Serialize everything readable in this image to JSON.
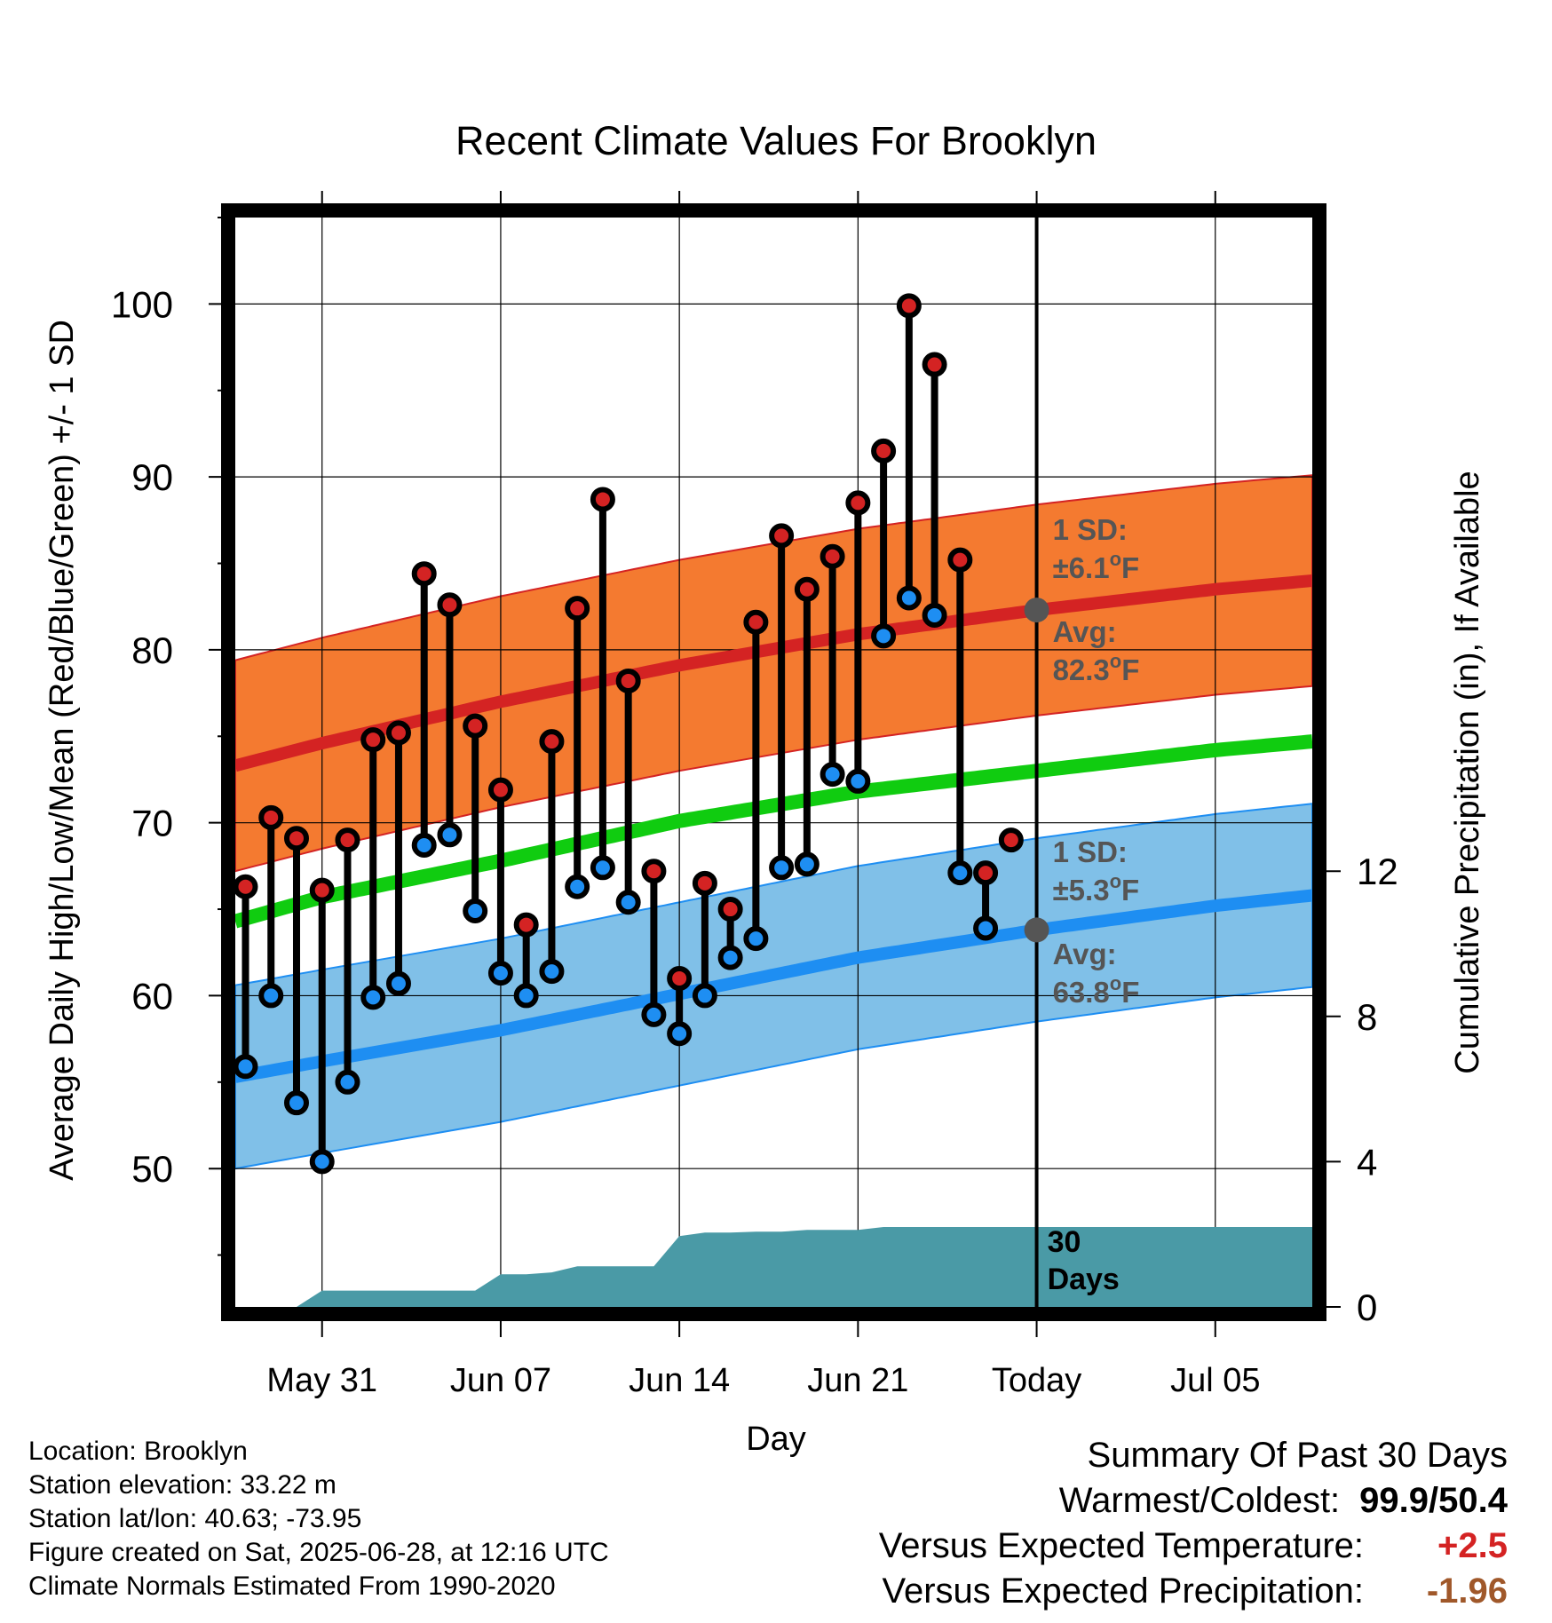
{
  "chart_data": {
    "type": "line",
    "title": "Recent Climate Values For Brooklyn",
    "xlabel": "Day",
    "ylabel": "Average Daily High/Low/Mean (Red/Blue/Green) +/- 1 SD",
    "y2label": "Cumulative Precipitation (in), If Available",
    "ylim": [
      42,
      105
    ],
    "y2lim": [
      0,
      30
    ],
    "xlim_day_of_year": [
      147.6,
      189.8
    ],
    "x_ticks": [
      {
        "doy": 151,
        "label": "May 31"
      },
      {
        "doy": 158,
        "label": "Jun 07"
      },
      {
        "doy": 165,
        "label": "Jun 14"
      },
      {
        "doy": 172,
        "label": "Jun 21"
      },
      {
        "doy": 179,
        "label": "Today"
      },
      {
        "doy": 186,
        "label": "Jul 05"
      }
    ],
    "y_ticks": [
      50,
      60,
      70,
      80,
      90,
      100
    ],
    "y2_ticks": [
      0,
      4,
      8,
      12
    ],
    "grid": true,
    "colors": {
      "high": "#d42323",
      "high_band": "#f47a30",
      "low": "#1e8ef2",
      "low_band": "#80c0e8",
      "mean": "#10cc10",
      "precip": "#4a9aa6",
      "annotation": "#555555",
      "avg_marker": "#555555",
      "frame": "#000000"
    },
    "high_normal": {
      "x": [
        147.6,
        151,
        158,
        165,
        172,
        179,
        186,
        189.8
      ],
      "values": [
        73.3,
        74.6,
        77.0,
        79.1,
        80.9,
        82.3,
        83.5,
        84.0
      ]
    },
    "high_sd": 6.1,
    "mean_normal": {
      "x": [
        147.6,
        151,
        158,
        165,
        172,
        179,
        186,
        189.8
      ],
      "values": [
        64.3,
        65.7,
        67.8,
        70.1,
        71.8,
        73.0,
        74.2,
        74.7
      ]
    },
    "low_normal": {
      "x": [
        147.6,
        151,
        158,
        165,
        172,
        179,
        186,
        189.8
      ],
      "values": [
        55.3,
        56.2,
        58.0,
        60.1,
        62.2,
        63.8,
        65.2,
        65.8
      ]
    },
    "low_sd": 5.3,
    "days": [
      148,
      149,
      150,
      151,
      152,
      153,
      154,
      155,
      156,
      157,
      158,
      159,
      160,
      161,
      162,
      163,
      164,
      165,
      166,
      167,
      168,
      169,
      170,
      171,
      172,
      173,
      174,
      175,
      176,
      177,
      178
    ],
    "highs": [
      66.3,
      70.3,
      69.1,
      66.1,
      69.0,
      74.8,
      75.2,
      84.4,
      82.6,
      75.6,
      71.9,
      64.1,
      74.7,
      82.4,
      88.7,
      78.2,
      67.2,
      61.0,
      66.5,
      65.0,
      81.6,
      86.6,
      83.5,
      85.4,
      88.5,
      91.5,
      99.9,
      96.5,
      85.2,
      67.1,
      69.0
    ],
    "lows": [
      55.9,
      60.0,
      53.8,
      50.4,
      55.0,
      59.9,
      60.7,
      68.7,
      69.3,
      64.9,
      61.3,
      60.0,
      61.4,
      66.3,
      67.4,
      65.4,
      58.9,
      57.8,
      60.0,
      62.2,
      63.3,
      67.4,
      67.6,
      72.8,
      72.4,
      80.8,
      83.0,
      82.0,
      67.1,
      63.9,
      null
    ],
    "precip_cumulative": {
      "x": [
        147.6,
        150,
        151,
        152,
        153,
        154,
        155,
        156,
        157,
        158,
        159,
        160,
        161,
        162,
        163,
        164,
        165,
        166,
        167,
        168,
        169,
        170,
        171,
        172,
        173,
        174,
        178,
        189.8
      ],
      "values": [
        0.0,
        0.0,
        0.45,
        0.45,
        0.45,
        0.45,
        0.45,
        0.45,
        0.45,
        0.9,
        0.9,
        0.95,
        1.12,
        1.12,
        1.12,
        1.12,
        1.95,
        2.05,
        2.05,
        2.07,
        2.07,
        2.12,
        2.12,
        2.12,
        2.2,
        2.2,
        2.2,
        2.2
      ]
    },
    "annotations": {
      "high_sd_label": "1 SD:",
      "high_sd_value": "±6.1",
      "high_avg_label": "Avg:",
      "high_avg_value": "82.3",
      "high_avg": 82.3,
      "low_sd_label": "1 SD:",
      "low_sd_value": "±5.3",
      "low_avg_label": "Avg:",
      "low_avg_value": "63.8",
      "low_avg": 63.8,
      "degree_symbol": "o",
      "unit": "F",
      "days_number": "30",
      "days_word": "Days",
      "today_doy": 179
    }
  },
  "footer": {
    "location": "Location: Brooklyn",
    "elevation": "Station elevation: 33.22 m",
    "latlon": "Station lat/lon: 40.63; -73.95",
    "created": "Figure created on Sat, 2025-06-28, at 12:16 UTC",
    "normals": "Climate Normals Estimated From 1990-2020"
  },
  "summary": {
    "title": "Summary Of Past 30 Days",
    "warmest_label": "Warmest/Coldest:",
    "warmest_value": "99.9/50.4",
    "temp_label": "Versus Expected Temperature:",
    "temp_value": "+2.5",
    "temp_color": "#d42323",
    "precip_label": "Versus Expected Precipitation:",
    "precip_value": "-1.96",
    "precip_color": "#a0582a"
  }
}
